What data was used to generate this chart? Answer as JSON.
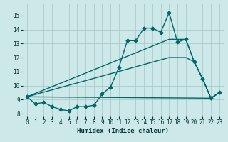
{
  "xlabel": "Humidex (Indice chaleur)",
  "ylabel": "",
  "background_color": "#cce8e8",
  "grid_color": "#aacccc",
  "line_color": "#006666",
  "xlim": [
    -0.5,
    23.5
  ],
  "ylim": [
    7.8,
    15.8
  ],
  "xticks": [
    0,
    1,
    2,
    3,
    4,
    5,
    6,
    7,
    8,
    9,
    10,
    11,
    12,
    13,
    14,
    15,
    16,
    17,
    18,
    19,
    20,
    21,
    22,
    23
  ],
  "yticks": [
    8,
    9,
    10,
    11,
    12,
    13,
    14,
    15
  ],
  "series": [
    {
      "x": [
        0,
        1,
        2,
        3,
        4,
        5,
        6,
        7,
        8,
        9,
        10,
        11,
        12,
        13,
        14,
        15,
        16,
        17,
        18,
        19,
        20,
        21,
        22,
        23
      ],
      "y": [
        9.2,
        8.7,
        8.8,
        8.5,
        8.3,
        8.2,
        8.5,
        8.5,
        8.6,
        9.4,
        9.9,
        11.3,
        13.2,
        13.2,
        14.1,
        14.1,
        13.8,
        15.2,
        13.1,
        13.3,
        11.7,
        10.5,
        9.1,
        9.5
      ],
      "marker": "D",
      "marker_size": 2.5,
      "linewidth": 1.0
    },
    {
      "x": [
        0,
        17,
        19,
        20,
        21,
        22,
        23
      ],
      "y": [
        9.2,
        13.3,
        13.3,
        11.7,
        10.5,
        9.1,
        9.5
      ],
      "marker": null,
      "linewidth": 1.0
    },
    {
      "x": [
        0,
        17,
        19,
        20,
        21,
        22,
        23
      ],
      "y": [
        9.2,
        12.0,
        12.0,
        11.7,
        10.5,
        9.1,
        9.5
      ],
      "marker": null,
      "linewidth": 1.0
    },
    {
      "x": [
        0,
        22,
        23
      ],
      "y": [
        9.2,
        9.1,
        9.5
      ],
      "marker": null,
      "linewidth": 1.0
    }
  ]
}
